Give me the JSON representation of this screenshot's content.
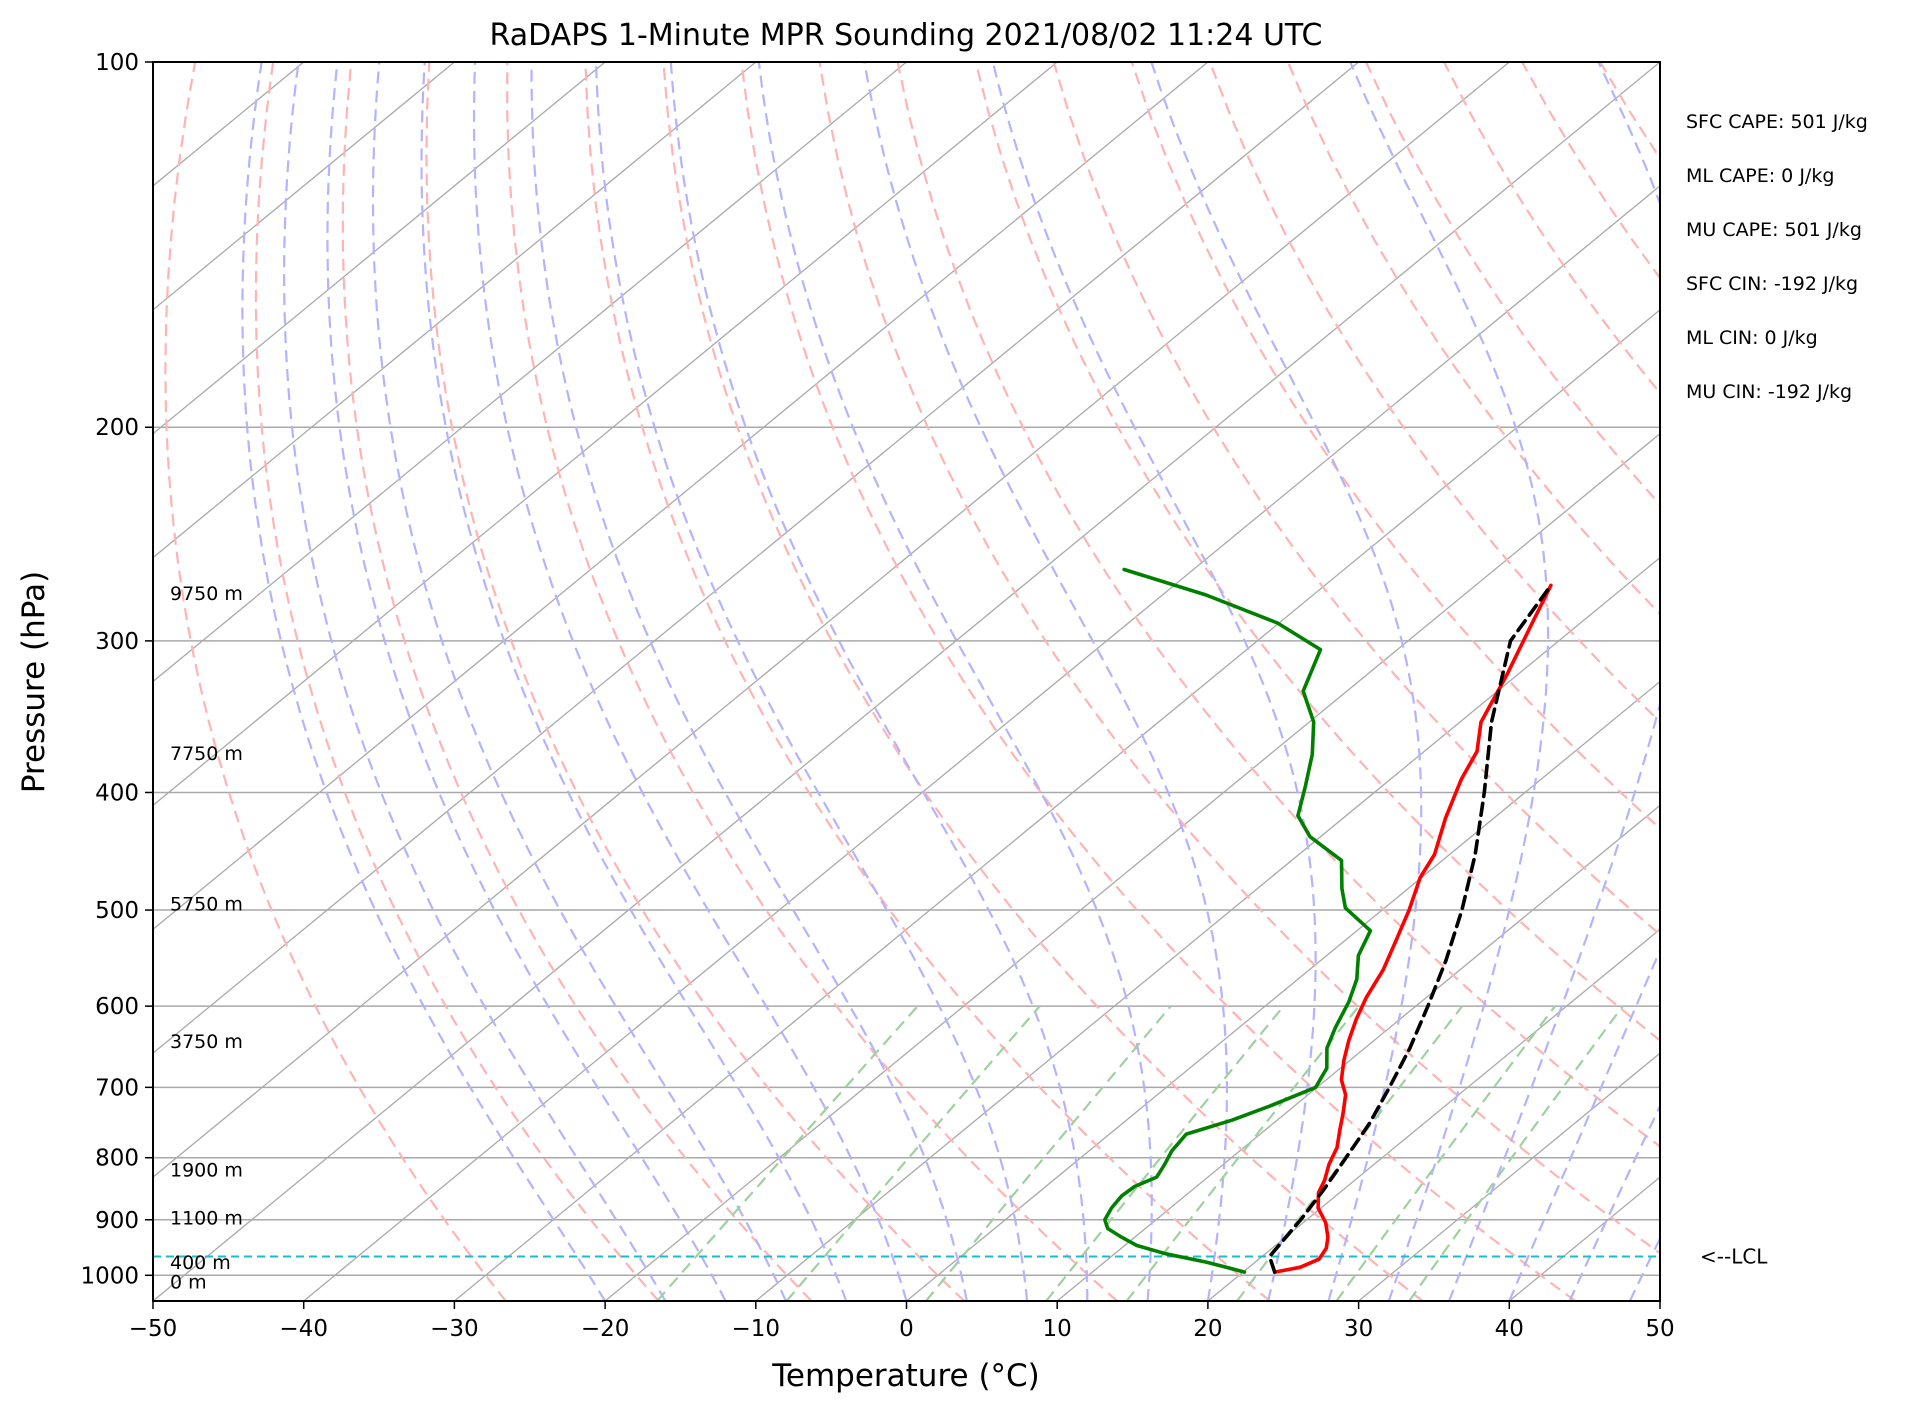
{
  "chart_data": {
    "type": "line",
    "subtype": "skew-t log-p sounding",
    "title": "RaDAPS 1-Minute MPR Sounding 2021/08/02 11:24 UTC",
    "xlabel": "Temperature (°C)",
    "ylabel": "Pressure (hPa)",
    "xlim": [
      -50,
      50
    ],
    "ylim": [
      1050,
      100
    ],
    "y_scale": "log",
    "grid": true,
    "x_ticks": [
      -50,
      -40,
      -30,
      -20,
      -10,
      0,
      10,
      20,
      30,
      40,
      50
    ],
    "x_tick_labels": [
      "−50",
      "−40",
      "−30",
      "−20",
      "−10",
      "0",
      "10",
      "20",
      "30",
      "40",
      "50"
    ],
    "y_ticks": [
      100,
      200,
      300,
      400,
      500,
      600,
      700,
      800,
      900,
      1000
    ],
    "y_tick_labels": [
      "100",
      "200",
      "300",
      "400",
      "500",
      "600",
      "700",
      "800",
      "900",
      "1000"
    ],
    "height_labels": [
      {
        "p": 274,
        "text": "9750 m"
      },
      {
        "p": 371,
        "text": "7750 m"
      },
      {
        "p": 494,
        "text": "5750 m"
      },
      {
        "p": 641,
        "text": "3750 m"
      },
      {
        "p": 818,
        "text": "1900 m"
      },
      {
        "p": 896,
        "text": "1100 m"
      },
      {
        "p": 975,
        "text": "400 m"
      },
      {
        "p": 1012,
        "text": "0 m"
      }
    ],
    "lcl": {
      "p": 965,
      "label": "<--LCL",
      "color": "#17becf"
    },
    "indices": [
      "SFC CAPE: 501 J/kg",
      "ML CAPE: 0 J/kg",
      "MU CAPE: 501 J/kg",
      "SFC CIN: -192 J/kg",
      "ML CIN: 0 J/kg",
      "MU CIN: -192 J/kg"
    ],
    "series": [
      {
        "color": "#ff0000",
        "points": [
          [
            994,
            22.1
          ],
          [
            985,
            23.4
          ],
          [
            970,
            24.0
          ],
          [
            950,
            23.6
          ],
          [
            930,
            22.8
          ],
          [
            905,
            21.5
          ],
          [
            880,
            19.8
          ],
          [
            855,
            18.6
          ],
          [
            835,
            18.0
          ],
          [
            810,
            17.0
          ],
          [
            785,
            16.2
          ],
          [
            760,
            15.0
          ],
          [
            735,
            13.8
          ],
          [
            710,
            12.5
          ],
          [
            690,
            11.0
          ],
          [
            665,
            9.6
          ],
          [
            640,
            8.3
          ],
          [
            615,
            7.1
          ],
          [
            590,
            6.0
          ],
          [
            560,
            4.9
          ],
          [
            530,
            3.4
          ],
          [
            500,
            1.8
          ],
          [
            470,
            -0.1
          ],
          [
            450,
            -1.0
          ],
          [
            420,
            -3.2
          ],
          [
            390,
            -5.3
          ],
          [
            370,
            -6.5
          ],
          [
            350,
            -8.6
          ],
          [
            320,
            -10.7
          ],
          [
            290,
            -13.2
          ],
          [
            270,
            -15.0
          ]
        ]
      },
      {
        "color": "#008000",
        "points": [
          [
            994,
            20.1
          ],
          [
            985,
            18.5
          ],
          [
            975,
            16.7
          ],
          [
            960,
            13.4
          ],
          [
            945,
            10.8
          ],
          [
            930,
            9.1
          ],
          [
            915,
            7.5
          ],
          [
            900,
            6.6
          ],
          [
            880,
            6.1
          ],
          [
            860,
            5.8
          ],
          [
            845,
            5.9
          ],
          [
            830,
            6.6
          ],
          [
            810,
            6.1
          ],
          [
            790,
            5.5
          ],
          [
            765,
            5.1
          ],
          [
            745,
            7.0
          ],
          [
            725,
            8.4
          ],
          [
            700,
            9.9
          ],
          [
            675,
            9.1
          ],
          [
            650,
            7.5
          ],
          [
            625,
            6.4
          ],
          [
            595,
            5.2
          ],
          [
            570,
            3.9
          ],
          [
            545,
            2.1
          ],
          [
            520,
            0.9
          ],
          [
            498,
            -2.6
          ],
          [
            480,
            -4.4
          ],
          [
            455,
            -6.7
          ],
          [
            435,
            -10.7
          ],
          [
            418,
            -13.2
          ],
          [
            395,
            -15.1
          ],
          [
            372,
            -17.2
          ],
          [
            350,
            -19.7
          ],
          [
            330,
            -22.9
          ],
          [
            305,
            -25.1
          ],
          [
            290,
            -30.1
          ],
          [
            275,
            -37.1
          ],
          [
            262,
            -44.6
          ]
        ]
      },
      {
        "color": "#000000",
        "dashed": true,
        "points": [
          [
            994,
            22.1
          ],
          [
            965,
            20.5
          ],
          [
            900,
            19.6
          ],
          [
            850,
            18.7
          ],
          [
            800,
            17.6
          ],
          [
            750,
            16.4
          ],
          [
            700,
            14.8
          ],
          [
            650,
            13.0
          ],
          [
            600,
            10.8
          ],
          [
            550,
            8.3
          ],
          [
            500,
            5.3
          ],
          [
            450,
            1.7
          ],
          [
            400,
            -2.7
          ],
          [
            350,
            -7.9
          ],
          [
            300,
            -13.2
          ],
          [
            270,
            -15.0
          ]
        ]
      }
    ],
    "background_colors": {
      "isotherm": "#a9a9a9",
      "isobar": "#a9a9a9",
      "dry_adiabat": "#ffb3b3",
      "moist_adiabat": "#b3b3ff",
      "mixing_ratio": "#9fd19f"
    }
  }
}
